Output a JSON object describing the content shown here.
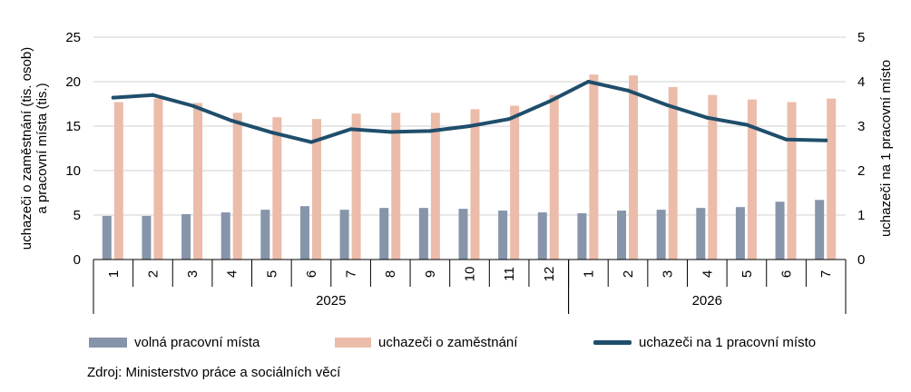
{
  "chart_data": {
    "type": "bar",
    "categories": [
      "1",
      "2",
      "3",
      "4",
      "5",
      "6",
      "7",
      "8",
      "9",
      "10",
      "11",
      "12",
      "1",
      "2",
      "3",
      "4",
      "5",
      "6",
      "7"
    ],
    "year_groups": [
      {
        "label": "2025",
        "count": 12
      },
      {
        "label": "2026",
        "count": 7
      }
    ],
    "series": [
      {
        "name": "volná pracovní místa",
        "type": "bar",
        "axis": "left",
        "color": "#8795aa",
        "values": [
          4.9,
          4.9,
          5.1,
          5.3,
          5.6,
          6.0,
          5.6,
          5.8,
          5.8,
          5.7,
          5.5,
          5.3,
          5.2,
          5.5,
          5.6,
          5.8,
          5.9,
          6.5,
          6.7
        ]
      },
      {
        "name": "uchazeči o zaměstnání",
        "type": "bar",
        "axis": "left",
        "color": "#ebbcaa",
        "values": [
          17.7,
          18.1,
          17.6,
          16.5,
          16.0,
          15.8,
          16.4,
          16.5,
          16.5,
          16.9,
          17.3,
          18.5,
          20.8,
          20.7,
          19.4,
          18.5,
          18.0,
          17.7,
          18.1
        ]
      },
      {
        "name": "uchazeči na 1 pracovní místo",
        "type": "line",
        "axis": "right",
        "color": "#1f4e6b",
        "values": [
          3.64,
          3.7,
          3.46,
          3.12,
          2.86,
          2.64,
          2.93,
          2.87,
          2.89,
          3.0,
          3.16,
          3.55,
          4.0,
          3.8,
          3.47,
          3.19,
          3.03,
          2.7,
          2.68
        ]
      }
    ],
    "y_left": {
      "label_line1": "uchazeči o zaměstnání (tis. osob)",
      "label_line2": "a pracovní místa (tis.)",
      "min": 0,
      "max": 25,
      "ticks": [
        0,
        5,
        10,
        15,
        20,
        25
      ]
    },
    "y_right": {
      "label": "uchazeči na 1 pracovní místo",
      "min": 0,
      "max": 5,
      "ticks": [
        0,
        1,
        2,
        3,
        4,
        5
      ]
    },
    "grid": true,
    "legend_position": "bottom"
  },
  "legend": {
    "vacancies": "volná pracovní místa",
    "applicants": "uchazeči o zaměstnání",
    "ratio": "uchazeči na 1 pracovní místo"
  },
  "source": "Zdroj: Ministerstvo práce a sociálních věcí"
}
